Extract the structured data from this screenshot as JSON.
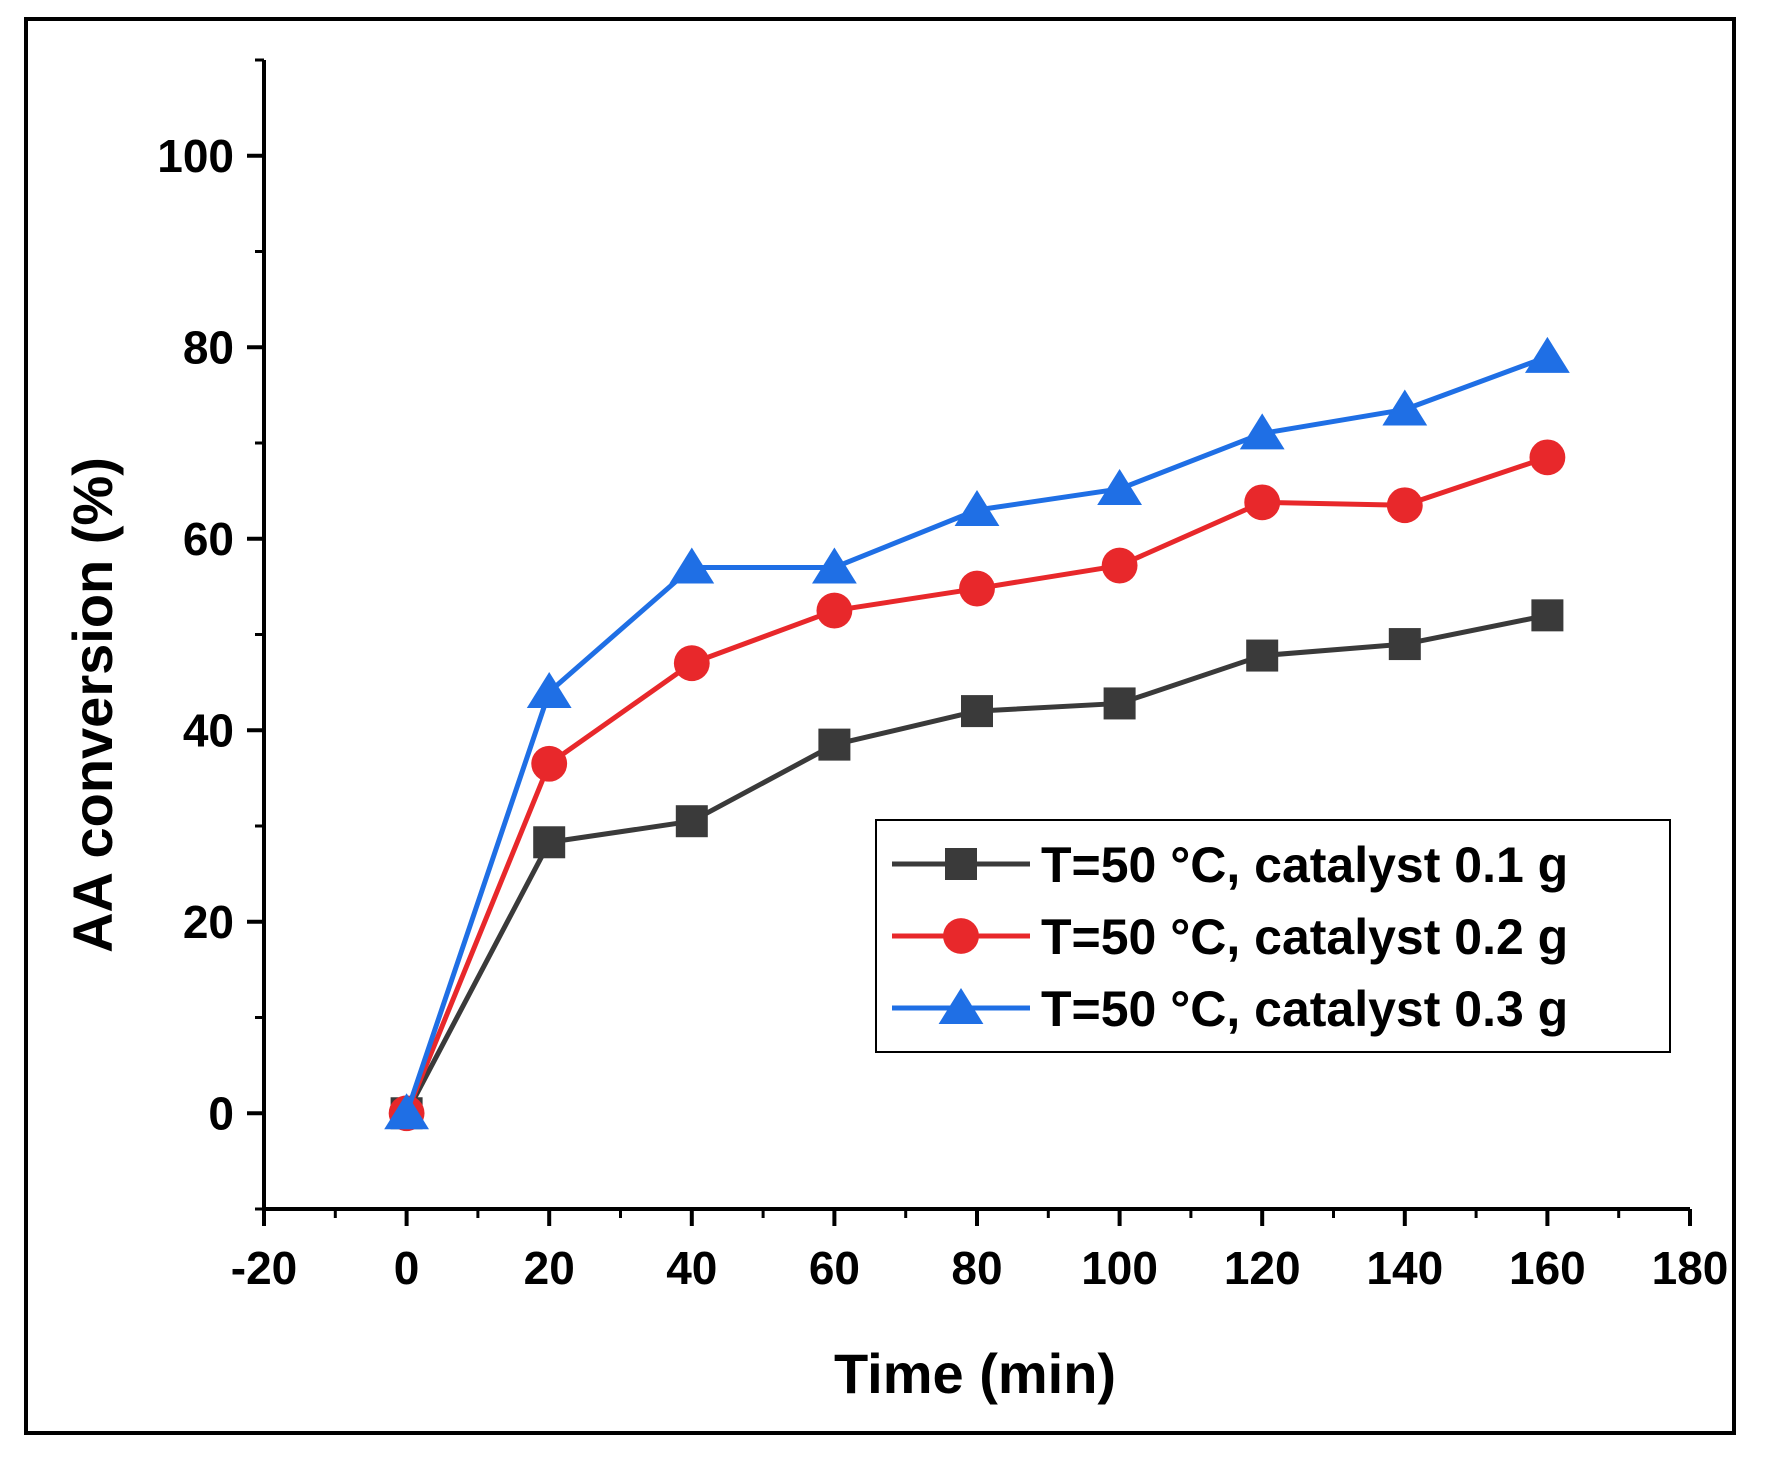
{
  "chart_data": {
    "type": "line",
    "title": "",
    "xlabel": "Time (min)",
    "ylabel": "AA conversion (%)",
    "xlim": [
      -20,
      180
    ],
    "ylim": [
      -10,
      110
    ],
    "xticks": [
      -20,
      0,
      20,
      40,
      60,
      80,
      100,
      120,
      140,
      160,
      180
    ],
    "yticks": [
      0,
      20,
      40,
      60,
      80,
      100
    ],
    "x_minor_step": 10,
    "y_minor_step": 10,
    "grid": false,
    "legend_position": "center-right",
    "x": [
      0,
      20,
      40,
      60,
      80,
      100,
      120,
      140,
      160
    ],
    "series": [
      {
        "name": "T=50 °C, catalyst 0.1 g",
        "color": "#3a3a3a",
        "marker": "square",
        "values": [
          0,
          28.3,
          30.5,
          38.5,
          42.0,
          42.8,
          47.8,
          49.0,
          52.0
        ]
      },
      {
        "name": "T=50 °C, catalyst 0.2 g",
        "color": "#e8282b",
        "marker": "circle",
        "values": [
          0,
          36.5,
          47.0,
          52.5,
          54.8,
          57.2,
          63.8,
          63.5,
          68.5
        ]
      },
      {
        "name": "T=50 °C, catalyst 0.3 g",
        "color": "#1f6fe5",
        "marker": "triangle",
        "values": [
          0,
          44.0,
          57.0,
          57.0,
          63.0,
          65.2,
          71.0,
          73.5,
          79.0
        ]
      }
    ]
  }
}
